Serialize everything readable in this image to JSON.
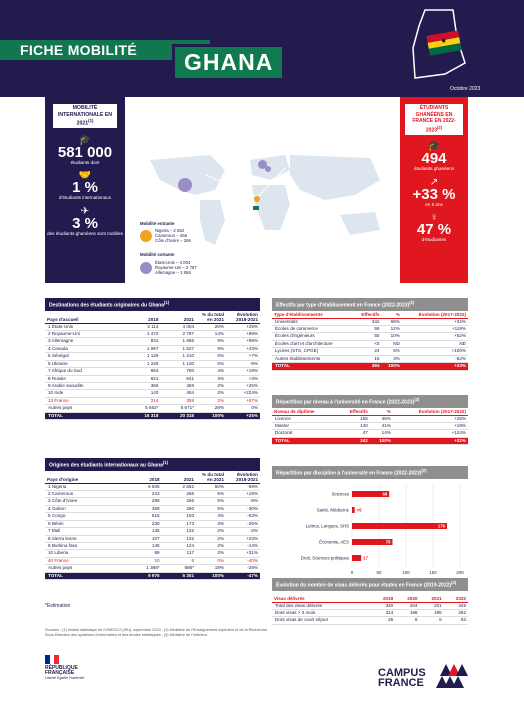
{
  "header": {
    "fiche": "FICHE MOBILITÉ",
    "country": "GHANA",
    "date": "Octobre 2023"
  },
  "flag_colors": [
    "#ce1126",
    "#fcd116",
    "#006b3f"
  ],
  "left_panel": {
    "label": "MOBILITÉ INTERNATIONALE EN 2021",
    "label_ref": "(1)",
    "stat1_value": "581 000",
    "stat1_text": "étudiants dont",
    "stat2_value": "1 %",
    "stat2_text": "d'étudiants internationaux",
    "stat3_value": "3 %",
    "stat3_text": "des étudiants ghanéens sont mobiles"
  },
  "map_legend": {
    "incoming_title": "Mobilité entrante",
    "incoming_items": [
      "Nigeria – 2 652",
      "Cameroun – 266",
      "Côte d'Ivoire – 266"
    ],
    "outgoing_title": "Mobilité sortante",
    "outgoing_items": [
      "États-Unis – 4 004",
      "Royaume-Uni – 2 787",
      "Allemagne – 1 656"
    ]
  },
  "right_panel": {
    "label": "ÉTUDIANTS GHANÉENS EN FRANCE EN 2022-2023",
    "label_ref": "(2)",
    "stat1_value": "494",
    "stat1_text": "étudiants ghanéens",
    "stat2_value": "+33 %",
    "stat2_text": "en 5 ans",
    "stat3_value": "47 %",
    "stat3_text": "d'étudiantes"
  },
  "dest_table": {
    "title": "Destinations des étudiants originaires du Ghana",
    "ref": "(1)",
    "headers": [
      "Pays d'accueil",
      "2018",
      "2021",
      "% du total en 2021",
      "Évolution 2018-2021"
    ],
    "rows": [
      [
        "1  États-Unis",
        "3 114",
        "4 004",
        "20%",
        "+29%"
      ],
      [
        "2  Royaume-Uni",
        "1 472",
        "2 787",
        "14%",
        "+89%"
      ],
      [
        "3  Allemagne",
        "831",
        "1 656",
        "8%",
        "+99%"
      ],
      [
        "4  Canada",
        "1 067",
        "1 527",
        "8%",
        "+43%"
      ],
      [
        "5  Sénégal",
        "1 126",
        "1 210",
        "6%",
        "+7%"
      ],
      [
        "6  Ukraine",
        "1 246",
        "1 130",
        "6%",
        "-9%"
      ],
      [
        "7  Afrique du Sud",
        "654",
        "780",
        "4%",
        "+19%"
      ],
      [
        "8  Russie",
        "621",
        "641",
        "3%",
        "+3%"
      ],
      [
        "9  Arabie saoudite",
        "366",
        "458",
        "2%",
        "+25%"
      ],
      [
        "10  Inde",
        "140",
        "454",
        "2%",
        "+224%"
      ],
      [
        "13  France",
        "214",
        "358",
        "2%",
        "+67%"
      ],
      [
        "Autres pays",
        "5 682*",
        "5 671*",
        "28%",
        "0%"
      ]
    ],
    "highlight_index": 10,
    "total": [
      "TOTAL",
      "16 318",
      "20 318",
      "100%",
      "+25%"
    ]
  },
  "orig_table": {
    "title": "Origines des étudiants internationaux au Ghana",
    "ref": "(1)",
    "headers": [
      "Pays d'origine",
      "2018",
      "2021",
      "% du total en 2021",
      "Évolution 2018-2021"
    ],
    "rows": [
      [
        "1  Nigeria",
        "6 506",
        "2 652",
        "50%",
        "-59%"
      ],
      [
        "2  Cameroun",
        "223",
        "266",
        "5%",
        "+19%"
      ],
      [
        "3  Côte d'Ivoire",
        "288",
        "266",
        "5%",
        "-8%"
      ],
      [
        "4  Gabon",
        "369",
        "260",
        "5%",
        "-30%"
      ],
      [
        "5  Congo",
        "515",
        "193",
        "4%",
        "-63%"
      ],
      [
        "6  Bénin",
        "230",
        "173",
        "3%",
        "-25%"
      ],
      [
        "7  Mali",
        "135",
        "132",
        "2%",
        "-2%"
      ],
      [
        "8  Sierra leone",
        "107",
        "132",
        "2%",
        "+23%"
      ],
      [
        "9  Burkina faso",
        "145",
        "124",
        "2%",
        "-14%"
      ],
      [
        "10  Liberia",
        "89",
        "117",
        "2%",
        "+31%"
      ],
      [
        "40  France",
        "10",
        "6",
        "0%",
        "-40%"
      ],
      [
        "Autres pays",
        "1 368*",
        "986*",
        "19%",
        "-28%"
      ]
    ],
    "highlight_index": 10,
    "total": [
      "TOTAL",
      "9 975",
      "5 301",
      "100%",
      "-47%"
    ]
  },
  "estimation": "*Estimation",
  "etab_table": {
    "title": "Effectifs par type d'établissement en France (2022-2023)",
    "ref": "(2)",
    "headers": [
      "Type d'établissements",
      "Effectifs",
      "%",
      "Évolution (2017-2022)"
    ],
    "rows": [
      [
        "Universités",
        "342",
        "69%",
        "+32%"
      ],
      [
        "Écoles de commerce",
        "59",
        "12%",
        "+119%"
      ],
      [
        "Écoles d'ingénieurs",
        "50",
        "10%",
        "+52%"
      ],
      [
        "Écoles d'art et d'architecture",
        "<5",
        "ND",
        "ND"
      ],
      [
        "Lycées (STS, CPGE)",
        "24",
        "5%",
        "+100%"
      ],
      [
        "Autres établissements",
        "15",
        "3%",
        "-52%"
      ]
    ],
    "total": [
      "TOTAL",
      "494",
      "100%",
      "+33%"
    ]
  },
  "niveau_table": {
    "title": "Répartition par niveau à l'université en France (2022-2023)",
    "ref": "(2)",
    "headers": [
      "Niveau de diplôme",
      "Effectifs",
      "%",
      "Évolution (2017-2022)"
    ],
    "rows": [
      [
        "Licence",
        "155",
        "45%",
        "+28%"
      ],
      [
        "Master",
        "140",
        "41%",
        "+19%"
      ],
      [
        "Doctorat",
        "47",
        "14%",
        "+124%"
      ]
    ],
    "total": [
      "TOTAL",
      "342",
      "100%",
      "+32%"
    ]
  },
  "chart_data": {
    "type": "bar",
    "orientation": "horizontal",
    "title": "Répartition par discipline à l'université en France (2022-2023)",
    "title_ref": "(2)",
    "categories": [
      "Sciences",
      "Santé, Médecine",
      "Lettres, Langues, SHS",
      "Économie, AES",
      "Droit, Sciences politiques"
    ],
    "values": [
      69,
      5,
      176,
      75,
      17
    ],
    "value_labels": [
      "69",
      "<5",
      "176",
      "75",
      "17"
    ],
    "xlim": [
      0,
      200
    ],
    "xticks": [
      "0",
      "50",
      "100",
      "150",
      "200"
    ],
    "color": "#e0171e",
    "grid": true
  },
  "visa_table": {
    "title": "Évolution du nombre de visas délivrés pour études en France (2019-2022)",
    "ref": "(4)",
    "headers": [
      "Visas délivrés",
      "2019",
      "2020",
      "2021",
      "2022"
    ],
    "rows": [
      [
        "Total des visas délivrés",
        "340",
        "204",
        "201",
        "345"
      ],
      [
        "Dont visas > 3 mois",
        "314",
        "198",
        "195",
        "282"
      ],
      [
        "Dont visas de court séjour",
        "26",
        "6",
        "6",
        "63"
      ]
    ]
  },
  "footer": {
    "sources": "Sources : (1) Institut statistique de l'UNESCO (ISU), septembre 2023 ; (2) Ministère de l'Enseignement supérieur et de la Recherche, Sous-Direction des systèmes d'information et des études statistiques ; (3) Ministère de l'Intérieur.",
    "republique_1": "RÉPUBLIQUE",
    "republique_2": "FRANÇAISE",
    "motto": "Liberté Égalité Fraternité",
    "brand_1": "CAMPUS",
    "brand_2": "FRANCE"
  }
}
